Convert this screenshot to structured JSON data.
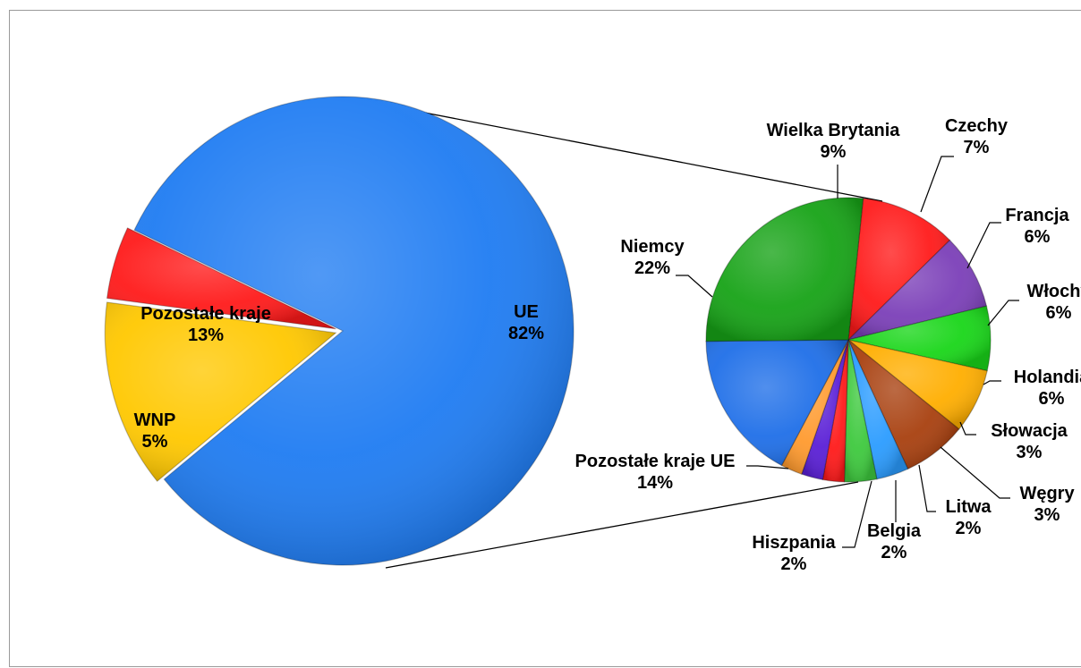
{
  "chart_data": [
    {
      "type": "pie",
      "slices": [
        {
          "label": "UE",
          "value": 82,
          "value_label": "82%",
          "color": "#1f7cf2"
        },
        {
          "label": "Pozostałe kraje",
          "value": 13,
          "value_label": "13%",
          "color": "#ffc800"
        },
        {
          "label": "WNP",
          "value": 5,
          "value_label": "5%",
          "color": "#ff1a1a"
        }
      ]
    },
    {
      "type": "pie",
      "exploded_from": "UE",
      "slices": [
        {
          "label": "Wielka Brytania",
          "value": 9,
          "value_label": "9%",
          "color": "#ff1a1a"
        },
        {
          "label": "Czechy",
          "value": 7,
          "value_label": "7%",
          "color": "#7b3fb8"
        },
        {
          "label": "Francja",
          "value": 6,
          "value_label": "6%",
          "color": "#19d619"
        },
        {
          "label": "Włochy",
          "value": 6,
          "value_label": "6%",
          "color": "#ffae00"
        },
        {
          "label": "Holandia",
          "value": 6,
          "value_label": "6%",
          "color": "#a8400f"
        },
        {
          "label": "Słowacja",
          "value": 3,
          "value_label": "3%",
          "color": "#2b9cff"
        },
        {
          "label": "Węgry",
          "value": 3,
          "value_label": "3%",
          "color": "#3ec93e"
        },
        {
          "label": "Litwa",
          "value": 2,
          "value_label": "2%",
          "color": "#ff1a1a"
        },
        {
          "label": "Belgia",
          "value": 2,
          "value_label": "2%",
          "color": "#5a1fd6"
        },
        {
          "label": "Hiszpania",
          "value": 2,
          "value_label": "2%",
          "color": "#ff9a2e"
        },
        {
          "label": "Pozostałe kraje UE",
          "value": 14,
          "value_label": "14%",
          "color": "#1f6fe8"
        },
        {
          "label": "Niemcy",
          "value": 22,
          "value_label": "22%",
          "color": "#17a317"
        }
      ]
    }
  ]
}
